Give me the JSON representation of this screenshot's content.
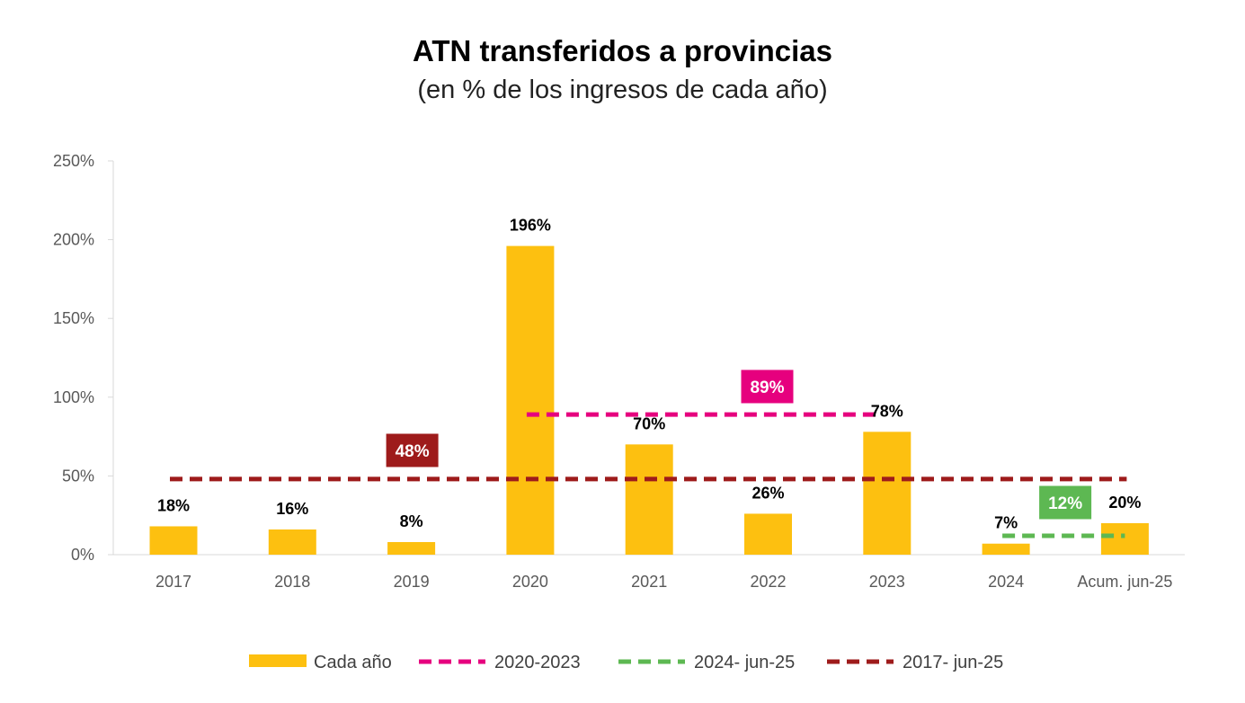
{
  "chart_data": {
    "type": "bar",
    "title": "ATN transferidos a provincias",
    "subtitle": "(en % de los ingresos de cada año)",
    "categories": [
      "2017",
      "2018",
      "2019",
      "2020",
      "2021",
      "2022",
      "2023",
      "2024",
      "Acum. jun-25"
    ],
    "series": [
      {
        "name": "Cada año",
        "type": "bar",
        "color": "#FDC010",
        "values": [
          18,
          16,
          8,
          196,
          70,
          26,
          78,
          7,
          20
        ],
        "labels": [
          "18%",
          "16%",
          "8%",
          "196%",
          "70%",
          "26%",
          "78%",
          "7%",
          "20%"
        ]
      }
    ],
    "averages": [
      {
        "name": "2020-2023",
        "style": "dashed",
        "color": "#E6007E",
        "value": 89,
        "label": "89%",
        "from": "2020",
        "to": "2023"
      },
      {
        "name": "2024- jun-25",
        "style": "dashed",
        "color": "#5DB852",
        "value": 12,
        "label": "12%",
        "from": "2024",
        "to": "Acum. jun-25"
      },
      {
        "name": "2017- jun-25",
        "style": "dashed",
        "color": "#9E1B1B",
        "value": 48,
        "label": "48%",
        "from": "2017",
        "to": "Acum. jun-25"
      }
    ],
    "yticks": [
      "0%",
      "50%",
      "100%",
      "150%",
      "200%",
      "250%"
    ],
    "ylim": [
      0,
      250
    ],
    "grid": false,
    "legend": "bottom"
  }
}
